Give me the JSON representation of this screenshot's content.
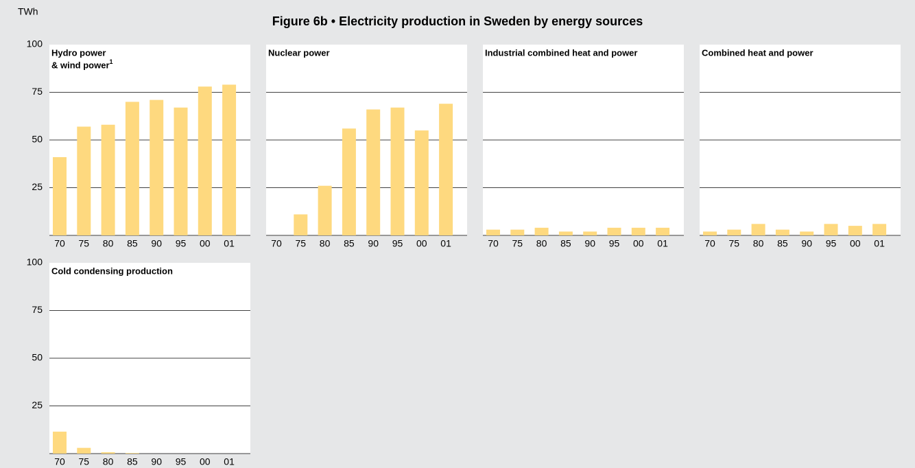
{
  "figure": {
    "title": "Figure 6b • Electricity production in Sweden by energy sources",
    "ylabel": "TWh"
  },
  "chart_data": [
    {
      "type": "bar",
      "title": [
        "Hydro power",
        "& wind power"
      ],
      "footnote": "1",
      "color": "#fed97f",
      "categories": [
        "70",
        "75",
        "80",
        "85",
        "90",
        "95",
        "00",
        "01"
      ],
      "values": [
        41,
        57,
        58,
        70,
        71,
        67,
        78,
        79
      ],
      "ylim": [
        0,
        100
      ],
      "yticks": [
        25,
        50,
        75,
        100
      ],
      "grid": true
    },
    {
      "type": "bar",
      "title": "Nuclear power",
      "color": "#fed97f",
      "categories": [
        "70",
        "75",
        "80",
        "85",
        "90",
        "95",
        "00",
        "01"
      ],
      "values": [
        0,
        11,
        26,
        56,
        66,
        67,
        55,
        69
      ],
      "ylim": [
        0,
        100
      ],
      "yticks": [
        25,
        50,
        75,
        100
      ],
      "grid": true
    },
    {
      "type": "bar",
      "title": "Industrial combined heat and power",
      "color": "#fed97f",
      "categories": [
        "70",
        "75",
        "80",
        "85",
        "90",
        "95",
        "00",
        "01"
      ],
      "values": [
        3,
        3,
        4,
        2,
        2,
        4,
        4,
        4
      ],
      "ylim": [
        0,
        100
      ],
      "yticks": [
        25,
        50,
        75,
        100
      ],
      "grid": true
    },
    {
      "type": "bar",
      "title": "Combined heat and power",
      "color": "#fed97f",
      "categories": [
        "70",
        "75",
        "80",
        "85",
        "90",
        "95",
        "00",
        "01"
      ],
      "values": [
        2,
        3,
        6,
        3,
        2,
        6,
        5,
        6
      ],
      "ylim": [
        0,
        100
      ],
      "yticks": [
        25,
        50,
        75,
        100
      ],
      "grid": true
    },
    {
      "type": "bar",
      "title": "Cold condensing production",
      "color": "#fed97f",
      "categories": [
        "70",
        "75",
        "80",
        "85",
        "90",
        "95",
        "00",
        "01"
      ],
      "values": [
        11.5,
        3,
        0.7,
        0.3,
        0,
        0,
        0,
        0
      ],
      "ylim": [
        0,
        100
      ],
      "yticks": [
        25,
        50,
        75,
        100
      ],
      "grid": true
    }
  ]
}
